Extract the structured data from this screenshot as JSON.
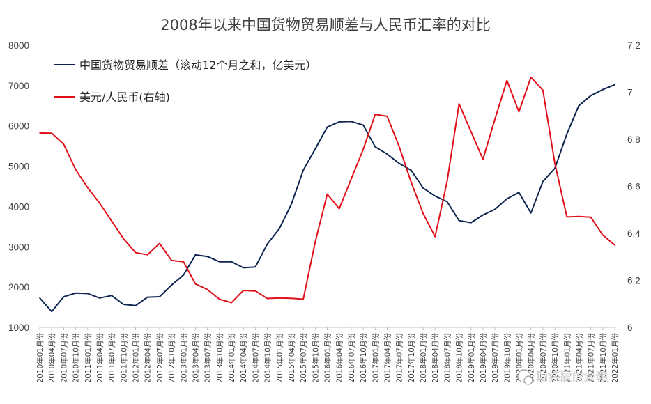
{
  "chart_data": {
    "type": "line",
    "title": "2008年以来中国货物贸易顺差与人民币汇率的对比",
    "x": [
      "2010年01月份",
      "2010年04月份",
      "2010年07月份",
      "2010年10月份",
      "2011年01月份",
      "2011年04月份",
      "2011年07月份",
      "2011年10月份",
      "2012年01月份",
      "2012年04月份",
      "2012年07月份",
      "2012年10月份",
      "2013年01月份",
      "2013年04月份",
      "2013年07月份",
      "2013年10月份",
      "2014年01月份",
      "2014年04月份",
      "2014年07月份",
      "2014年10月份",
      "2015年01月份",
      "2015年04月份",
      "2015年07月份",
      "2015年10月份",
      "2016年01月份",
      "2016年04月份",
      "2016年07月份",
      "2016年10月份",
      "2017年01月份",
      "2017年04月份",
      "2017年07月份",
      "2017年10月份",
      "2018年01月份",
      "2018年04月份",
      "2018年07月份",
      "2018年10月份",
      "2019年01月份",
      "2019年04月份",
      "2019年07月份",
      "2019年10月份",
      "2020年01月份",
      "2020年04月份",
      "2020年07月份",
      "2020年10月份",
      "2021年01月份",
      "2021年04月份",
      "2021年07月份",
      "2021年10月份",
      "2022年01月份"
    ],
    "left_axis": {
      "ylim": [
        1000,
        8000
      ],
      "ticks": [
        "1000",
        "2000",
        "3000",
        "4000",
        "5000",
        "6000",
        "7000",
        "8000"
      ]
    },
    "right_axis": {
      "ylim": [
        6.0,
        7.2
      ],
      "ticks": [
        "6",
        "6.2",
        "6.4",
        "6.6",
        "6.8",
        "7",
        "7.2"
      ]
    },
    "legend_position": "top-left",
    "grid": false,
    "series": [
      {
        "name": "中国货物贸易顺差（滚动12个月之和，亿美元）",
        "axis": "left",
        "color": "#0d2451",
        "values": [
          1730,
          1390,
          1760,
          1850,
          1840,
          1730,
          1790,
          1570,
          1540,
          1750,
          1760,
          2050,
          2300,
          2800,
          2760,
          2630,
          2630,
          2480,
          2500,
          3070,
          3450,
          4050,
          4900,
          5430,
          5970,
          6100,
          6110,
          6020,
          5480,
          5300,
          5070,
          4900,
          4460,
          4260,
          4120,
          3650,
          3600,
          3790,
          3930,
          4190,
          4350,
          3840,
          4620,
          4950,
          5800,
          6500,
          6750,
          6900,
          7020
        ]
      },
      {
        "name": "美元/人民币(右轴)",
        "axis": "right",
        "color": "#e0101a",
        "values": [
          6.827,
          6.826,
          6.779,
          6.671,
          6.594,
          6.529,
          6.453,
          6.377,
          6.318,
          6.309,
          6.357,
          6.285,
          6.279,
          6.185,
          6.161,
          6.12,
          6.105,
          6.157,
          6.155,
          6.123,
          6.125,
          6.124,
          6.12,
          6.364,
          6.567,
          6.505,
          6.632,
          6.757,
          6.906,
          6.898,
          6.77,
          6.618,
          6.485,
          6.386,
          6.62,
          6.951,
          6.832,
          6.715,
          6.886,
          7.05,
          6.917,
          7.064,
          7.009,
          6.697,
          6.47,
          6.472,
          6.469,
          6.393,
          6.35
        ]
      }
    ]
  },
  "watermark": "财经家的余粮"
}
